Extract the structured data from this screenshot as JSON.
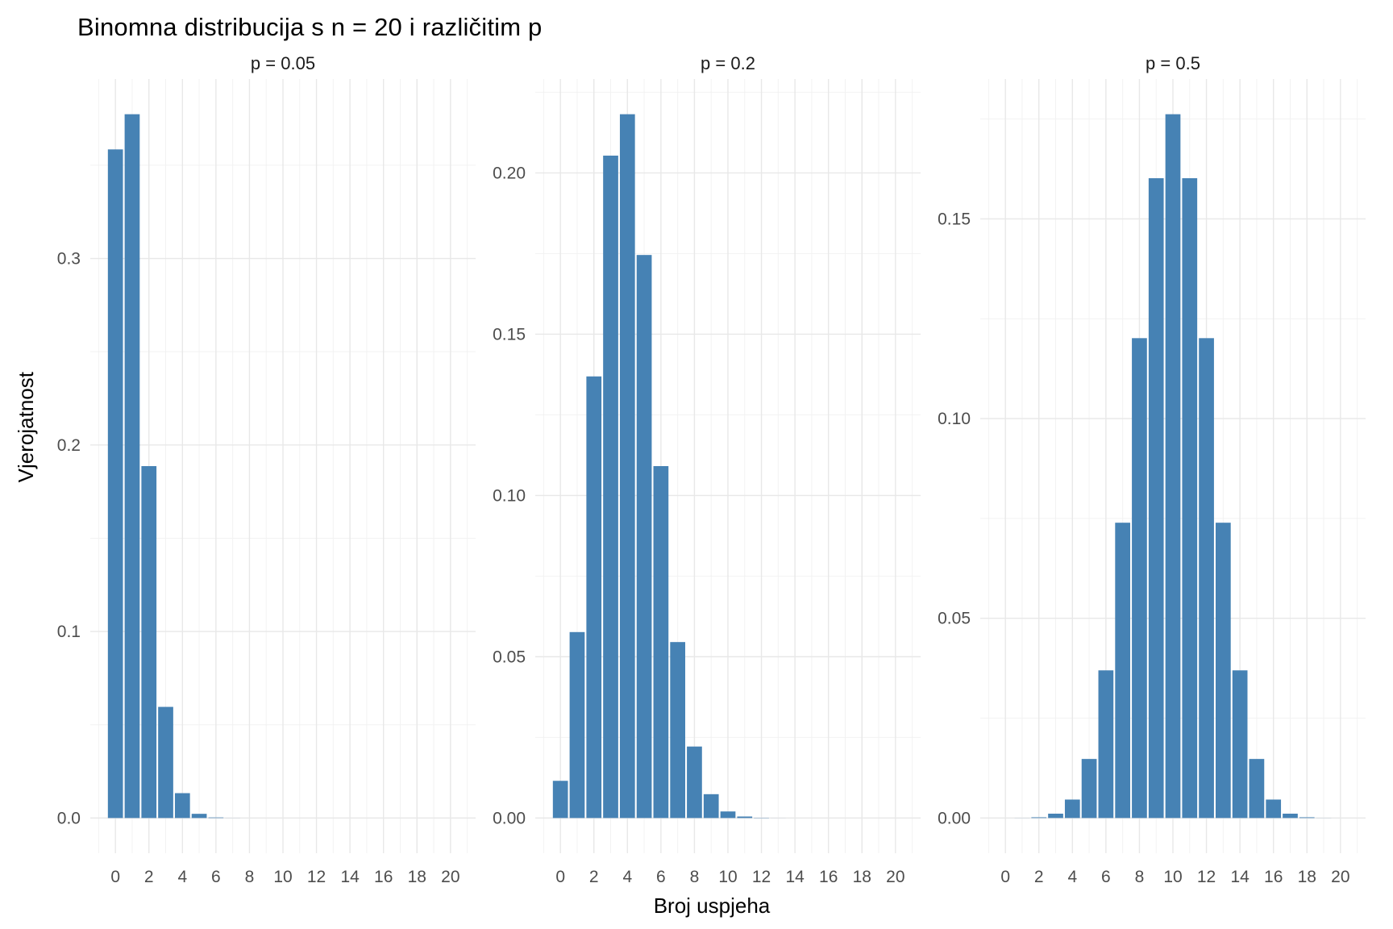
{
  "title": "Binomna distribucija s n = 20 i različitim p",
  "x_axis_title": "Broj uspjeha",
  "y_axis_title": "Vjerojatnost",
  "colors": {
    "bar": "#4682B4",
    "grid_major": "#E8E8E8",
    "grid_minor": "#F2F2F2",
    "tick_text": "#4D4D4D",
    "strip_text": "#1A1A1A",
    "title_text": "#000000"
  },
  "chart_data": {
    "type": "bar",
    "title": "Binomna distribucija s n = 20 i različitim p",
    "xlabel": "Broj uspjeha",
    "ylabel": "Vjerojatnost",
    "grid": true,
    "legend": false,
    "n": 20,
    "x": [
      0,
      1,
      2,
      3,
      4,
      5,
      6,
      7,
      8,
      9,
      10,
      11,
      12,
      13,
      14,
      15,
      16,
      17,
      18,
      19,
      20
    ],
    "x_ticks": [
      0,
      2,
      4,
      6,
      8,
      10,
      12,
      14,
      16,
      18,
      20
    ],
    "x_tick_labels": [
      "0",
      "2",
      "4",
      "6",
      "8",
      "10",
      "12",
      "14",
      "16",
      "18",
      "20"
    ],
    "xlim": [
      -1.5,
      21.5
    ],
    "facets": [
      {
        "label": "p = 0.05",
        "p": 0.05,
        "values": [
          0.358486,
          0.377354,
          0.188677,
          0.059582,
          0.013328,
          0.002245,
          0.000295,
          3.1e-05,
          3e-06,
          0,
          0,
          0,
          0,
          0,
          0,
          0,
          0,
          0,
          0,
          0,
          0
        ],
        "y_ticks": [
          0.0,
          0.1,
          0.2,
          0.3
        ],
        "y_tick_labels": [
          "0.0",
          "0.1",
          "0.2",
          "0.3"
        ],
        "ylim": [
          -0.018868,
          0.396222
        ]
      },
      {
        "label": "p = 0.2",
        "p": 0.2,
        "values": [
          0.011529,
          0.057646,
          0.136909,
          0.205364,
          0.218199,
          0.17456,
          0.1091,
          0.05455,
          0.022161,
          0.007387,
          0.002031,
          0.000462,
          8.7e-05,
          1.3e-05,
          2e-06,
          0,
          0,
          0,
          0,
          0,
          0
        ],
        "y_ticks": [
          0.0,
          0.05,
          0.1,
          0.15,
          0.2
        ],
        "y_tick_labels": [
          "0.00",
          "0.05",
          "0.10",
          "0.15",
          "0.20"
        ],
        "ylim": [
          -0.01091,
          0.229109
        ]
      },
      {
        "label": "p = 0.5",
        "p": 0.5,
        "values": [
          1e-06,
          1.9e-05,
          0.000181,
          0.001087,
          0.004621,
          0.014786,
          0.036964,
          0.073929,
          0.120134,
          0.160179,
          0.176197,
          0.160179,
          0.120134,
          0.073929,
          0.036964,
          0.014786,
          0.004621,
          0.001087,
          0.000181,
          1.9e-05,
          1e-06
        ],
        "y_ticks": [
          0.0,
          0.05,
          0.1,
          0.15
        ],
        "y_tick_labels": [
          "0.00",
          "0.05",
          "0.10",
          "0.15"
        ],
        "ylim": [
          -0.00881,
          0.185007
        ]
      }
    ]
  }
}
